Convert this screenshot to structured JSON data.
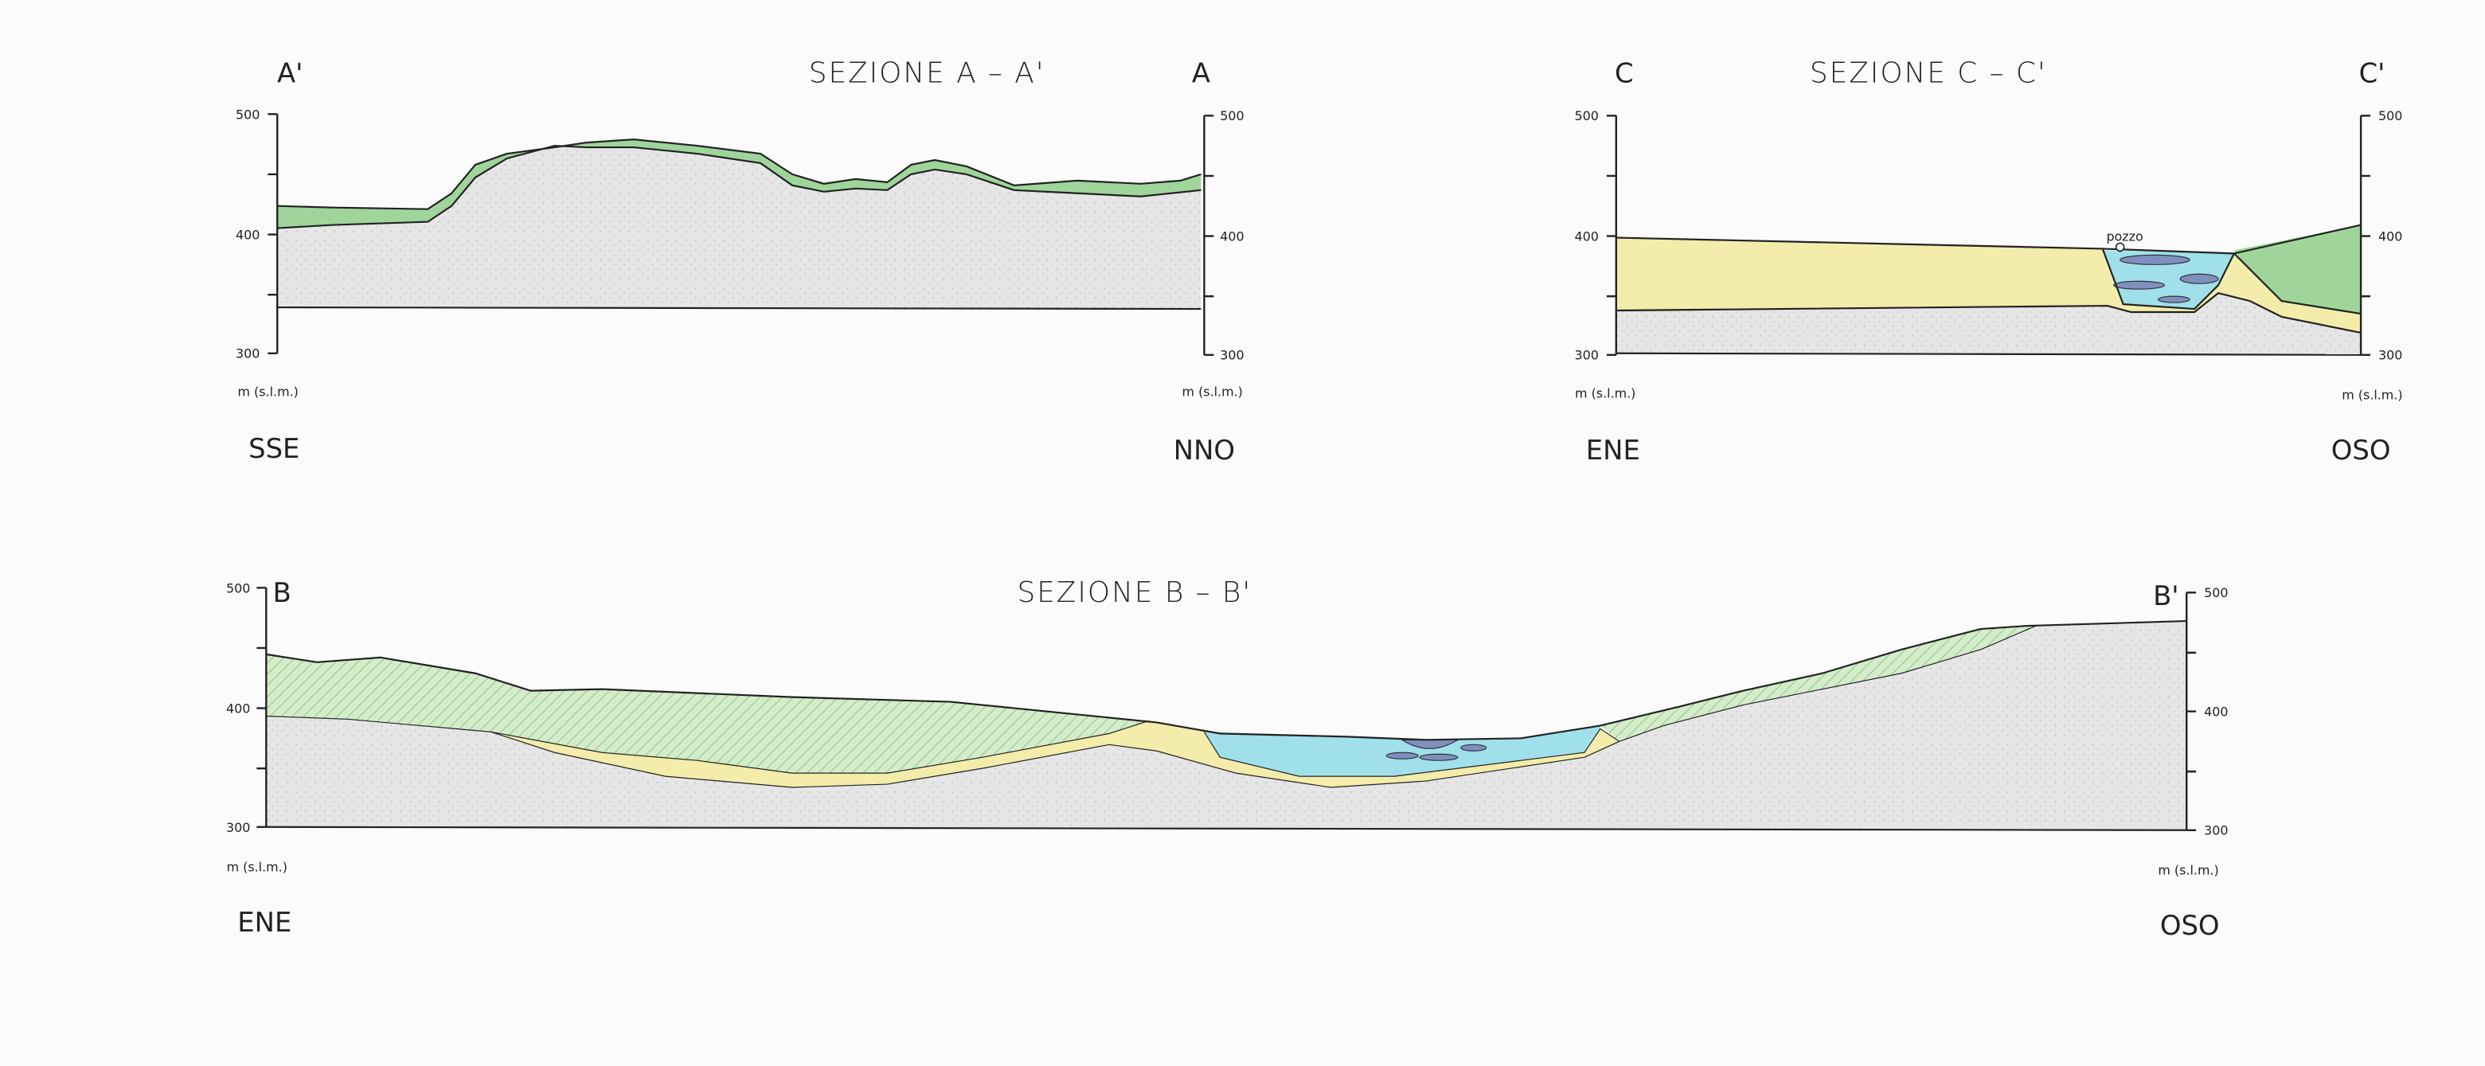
{
  "sections": [
    {
      "title": "SEZIONE A – A'",
      "left_label": "A'",
      "right_label": "A",
      "left_ticks": [
        "500",
        "400",
        "300"
      ],
      "right_ticks": [
        "500",
        "400",
        "300"
      ],
      "left_unit": "m (s.l.m.)",
      "right_unit": "m (s.l.m.)",
      "left_direction": "SSE",
      "right_direction": "NNO"
    },
    {
      "title": "SEZIONE C – C'",
      "left_label": "C",
      "right_label": "C'",
      "left_ticks": [
        "500",
        "400",
        "300"
      ],
      "right_ticks": [
        "500",
        "400",
        "300"
      ],
      "left_unit": "m (s.l.m.)",
      "right_unit": "m (s.l.m.)",
      "left_direction": "ENE",
      "right_direction": "OSO",
      "well_label": "pozzo"
    },
    {
      "title": "SEZIONE B – B'",
      "left_label": "B",
      "right_label": "B'",
      "left_ticks": [
        "500",
        "400",
        "300"
      ],
      "right_ticks": [
        "500",
        "400",
        "300"
      ],
      "left_unit": "m (s.l.m.)",
      "right_unit": "m (s.l.m.)",
      "left_direction": "ENE",
      "right_direction": "OSO"
    }
  ]
}
